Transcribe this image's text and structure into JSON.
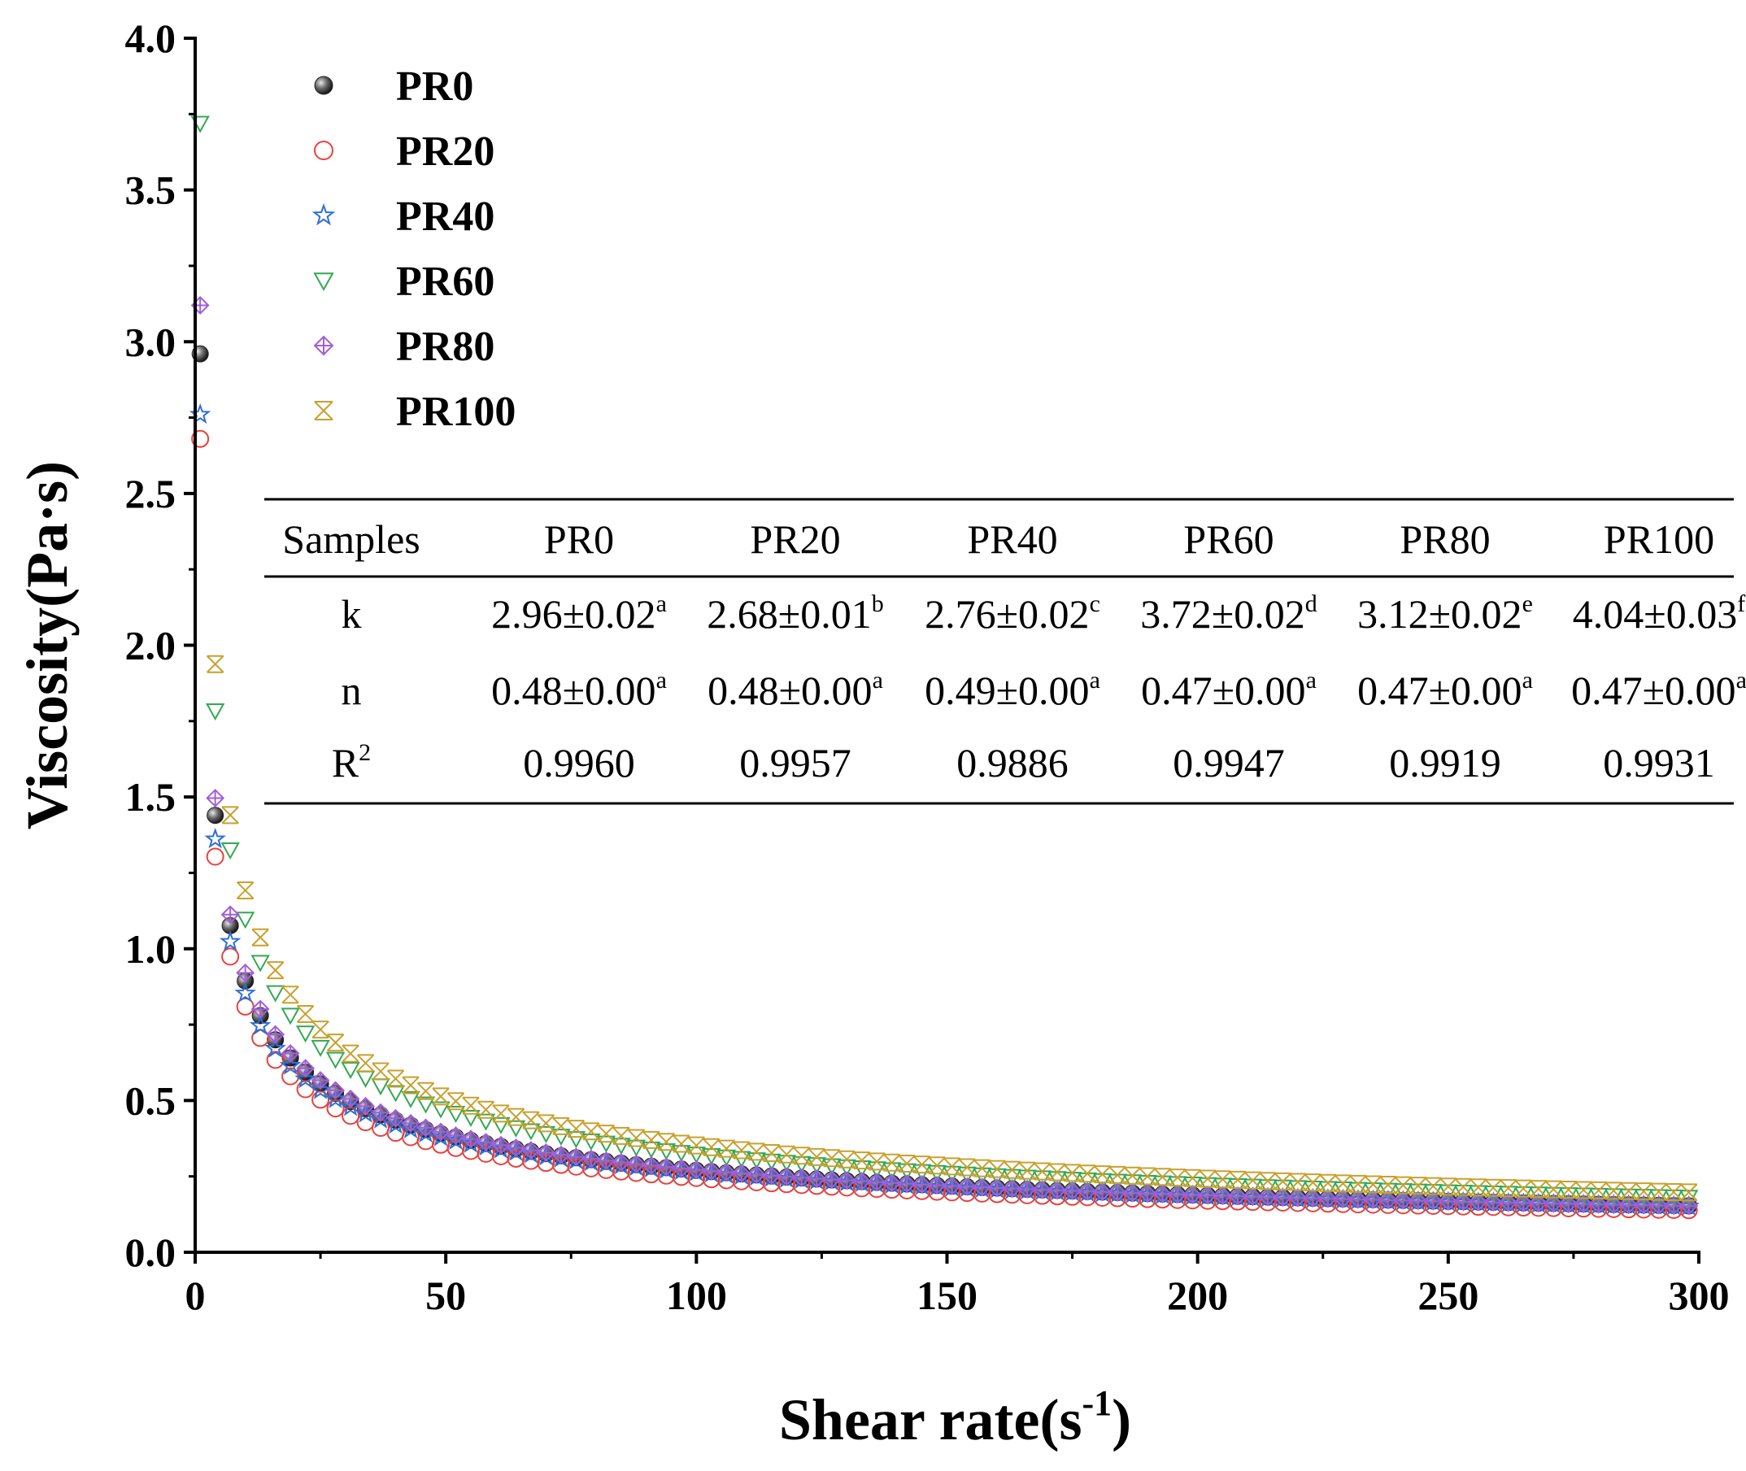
{
  "chart_data": {
    "type": "scatter",
    "xlabel": "Shear rate(s",
    "xlabel_sup": "-1",
    "xlabel_suffix": ")",
    "ylabel": "Viscosity(Pa·s)",
    "xlim": [
      0,
      300
    ],
    "ylim": [
      0.0,
      4.0
    ],
    "x_ticks": [
      "0",
      "50",
      "100",
      "150",
      "200",
      "250",
      "300"
    ],
    "y_ticks": [
      "0.0",
      "0.5",
      "1.0",
      "1.5",
      "2.0",
      "2.5",
      "3.0",
      "3.5",
      "4.0"
    ],
    "legend_position": "top-left",
    "model": "power law (viscosity = k * shear_rate^(n-1))",
    "series": [
      {
        "name": "PR0",
        "marker": "filled-sphere",
        "color": "#555555",
        "k": 2.96,
        "n": 0.48
      },
      {
        "name": "PR20",
        "marker": "circle",
        "color": "#e8413c",
        "k": 2.68,
        "n": 0.48
      },
      {
        "name": "PR40",
        "marker": "star",
        "color": "#2f6fd6",
        "k": 2.76,
        "n": 0.49
      },
      {
        "name": "PR60",
        "marker": "triangle-down",
        "color": "#34a853",
        "k": 3.72,
        "n": 0.47
      },
      {
        "name": "PR80",
        "marker": "diamond-plus",
        "color": "#a25fd8",
        "k": 3.12,
        "n": 0.47
      },
      {
        "name": "PR100",
        "marker": "hourglass-x",
        "color": "#c8a12e",
        "k": 4.04,
        "n": 0.47
      }
    ],
    "table": {
      "headers": [
        "Samples",
        "PR0",
        "PR20",
        "PR40",
        "PR60",
        "PR80",
        "PR100"
      ],
      "rows": [
        {
          "label": "k",
          "label_sup": "",
          "cells": [
            {
              "v": "2.96±0.02",
              "s": "a"
            },
            {
              "v": "2.68±0.01",
              "s": "b"
            },
            {
              "v": "2.76±0.02",
              "s": "c"
            },
            {
              "v": "3.72±0.02",
              "s": "d"
            },
            {
              "v": "3.12±0.02",
              "s": "e"
            },
            {
              "v": "4.04±0.03",
              "s": "f"
            }
          ]
        },
        {
          "label": "n",
          "label_sup": "",
          "cells": [
            {
              "v": "0.48±0.00",
              "s": "a"
            },
            {
              "v": "0.48±0.00",
              "s": "a"
            },
            {
              "v": "0.49±0.00",
              "s": "a"
            },
            {
              "v": "0.47±0.00",
              "s": "a"
            },
            {
              "v": "0.47±0.00",
              "s": "a"
            },
            {
              "v": "0.47±0.00",
              "s": "a"
            }
          ]
        },
        {
          "label": "R",
          "label_sup": "2",
          "cells": [
            {
              "v": "0.9960",
              "s": ""
            },
            {
              "v": "0.9957",
              "s": ""
            },
            {
              "v": "0.9886",
              "s": ""
            },
            {
              "v": "0.9947",
              "s": ""
            },
            {
              "v": "0.9919",
              "s": ""
            },
            {
              "v": "0.9931",
              "s": ""
            }
          ]
        }
      ]
    }
  }
}
